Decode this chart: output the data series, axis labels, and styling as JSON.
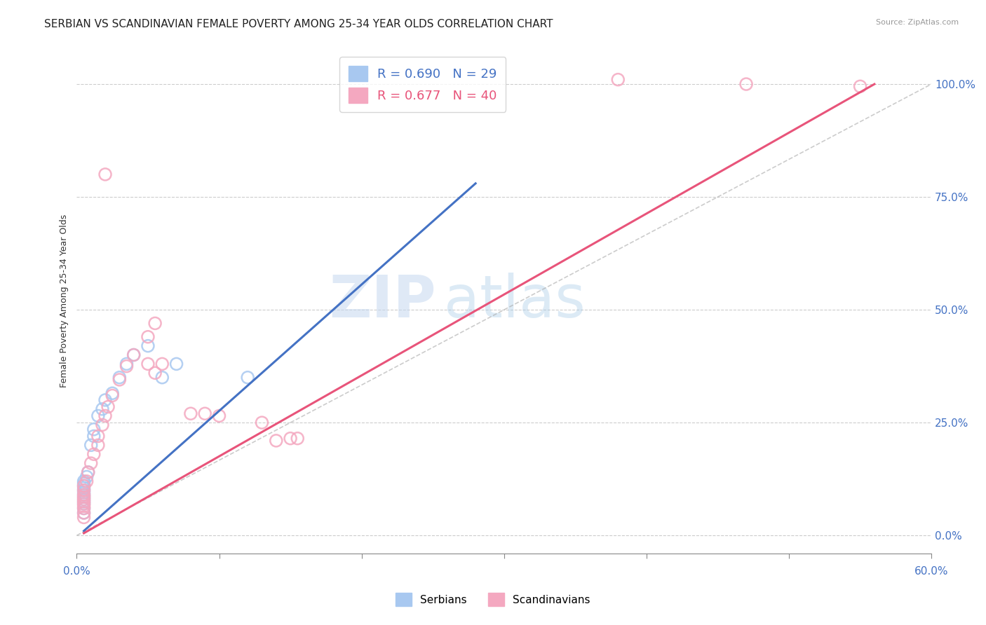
{
  "title": "SERBIAN VS SCANDINAVIAN FEMALE POVERTY AMONG 25-34 YEAR OLDS CORRELATION CHART",
  "source": "Source: ZipAtlas.com",
  "ylabel": "Female Poverty Among 25-34 Year Olds",
  "xlim": [
    0.0,
    0.6
  ],
  "ylim": [
    -0.04,
    1.08
  ],
  "yticks_right": [
    0.0,
    0.25,
    0.5,
    0.75,
    1.0
  ],
  "ytick_labels_right": [
    "0.0%",
    "25.0%",
    "50.0%",
    "75.0%",
    "100.0%"
  ],
  "xticks": [
    0.0,
    0.1,
    0.2,
    0.3,
    0.4,
    0.5,
    0.6
  ],
  "serbian_R": 0.69,
  "serbian_N": 29,
  "scandinavian_R": 0.677,
  "scandinavian_N": 40,
  "serbian_color": "#a8c8f0",
  "scandinavian_color": "#f4a8c0",
  "serbian_line_color": "#4472C4",
  "scandinavian_line_color": "#E8547A",
  "ref_line_color": "#aaaaaa",
  "background_color": "#ffffff",
  "title_fontsize": 11,
  "legend_fontsize": 13,
  "right_axis_color": "#4472C4",
  "serbian_line_x0": 0.005,
  "serbian_line_y0": 0.01,
  "serbian_line_x1": 0.28,
  "serbian_line_y1": 0.78,
  "scandinavian_line_x0": 0.005,
  "scandinavian_line_y0": 0.005,
  "scandinavian_line_x1": 0.56,
  "scandinavian_line_y1": 1.0,
  "serbian_scatter": [
    [
      0.005,
      0.05
    ],
    [
      0.005,
      0.06
    ],
    [
      0.005,
      0.07
    ],
    [
      0.005,
      0.075
    ],
    [
      0.005,
      0.08
    ],
    [
      0.005,
      0.085
    ],
    [
      0.005,
      0.09
    ],
    [
      0.005,
      0.095
    ],
    [
      0.005,
      0.1
    ],
    [
      0.005,
      0.105
    ],
    [
      0.005,
      0.11
    ],
    [
      0.005,
      0.115
    ],
    [
      0.005,
      0.12
    ],
    [
      0.007,
      0.13
    ],
    [
      0.008,
      0.14
    ],
    [
      0.01,
      0.2
    ],
    [
      0.012,
      0.22
    ],
    [
      0.012,
      0.235
    ],
    [
      0.015,
      0.265
    ],
    [
      0.018,
      0.28
    ],
    [
      0.02,
      0.3
    ],
    [
      0.025,
      0.315
    ],
    [
      0.03,
      0.35
    ],
    [
      0.035,
      0.38
    ],
    [
      0.04,
      0.4
    ],
    [
      0.05,
      0.42
    ],
    [
      0.06,
      0.35
    ],
    [
      0.07,
      0.38
    ],
    [
      0.12,
      0.35
    ]
  ],
  "scandinavian_scatter": [
    [
      0.005,
      0.04
    ],
    [
      0.005,
      0.05
    ],
    [
      0.005,
      0.06
    ],
    [
      0.005,
      0.065
    ],
    [
      0.005,
      0.07
    ],
    [
      0.005,
      0.075
    ],
    [
      0.005,
      0.08
    ],
    [
      0.005,
      0.085
    ],
    [
      0.005,
      0.09
    ],
    [
      0.005,
      0.1
    ],
    [
      0.005,
      0.11
    ],
    [
      0.007,
      0.12
    ],
    [
      0.008,
      0.14
    ],
    [
      0.01,
      0.16
    ],
    [
      0.012,
      0.18
    ],
    [
      0.015,
      0.2
    ],
    [
      0.015,
      0.22
    ],
    [
      0.018,
      0.245
    ],
    [
      0.02,
      0.265
    ],
    [
      0.022,
      0.285
    ],
    [
      0.025,
      0.31
    ],
    [
      0.03,
      0.345
    ],
    [
      0.035,
      0.375
    ],
    [
      0.04,
      0.4
    ],
    [
      0.05,
      0.44
    ],
    [
      0.055,
      0.47
    ],
    [
      0.06,
      0.38
    ],
    [
      0.08,
      0.27
    ],
    [
      0.09,
      0.27
    ],
    [
      0.1,
      0.265
    ],
    [
      0.02,
      0.8
    ],
    [
      0.13,
      0.25
    ],
    [
      0.14,
      0.21
    ],
    [
      0.15,
      0.215
    ],
    [
      0.155,
      0.215
    ],
    [
      0.05,
      0.38
    ],
    [
      0.055,
      0.36
    ],
    [
      0.38,
      1.01
    ],
    [
      0.47,
      1.0
    ],
    [
      0.55,
      0.995
    ]
  ]
}
